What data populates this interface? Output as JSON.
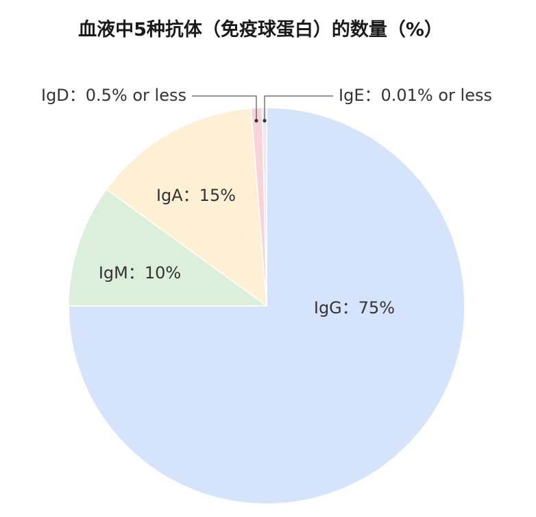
{
  "chart_data": {
    "type": "pie",
    "title": "血液中5种抗体（免疫球蛋白）的数量（%）",
    "slices": [
      {
        "name": "IgG",
        "value": 75,
        "label": "IgG：75%",
        "color": "#d6e4fb"
      },
      {
        "name": "IgM",
        "value": 10,
        "label": "IgM：10%",
        "color": "#dcefdb"
      },
      {
        "name": "IgA",
        "value": 15,
        "label": "IgA：15%",
        "color": "#fdf0d5"
      },
      {
        "name": "IgD",
        "value": 0.5,
        "label": "IgD：0.5% or less",
        "color": "#f9d3da"
      },
      {
        "name": "IgE",
        "value": 0.01,
        "label": "IgE：0.01% or less",
        "color": "#ebe7fb"
      }
    ],
    "legend": "none"
  }
}
